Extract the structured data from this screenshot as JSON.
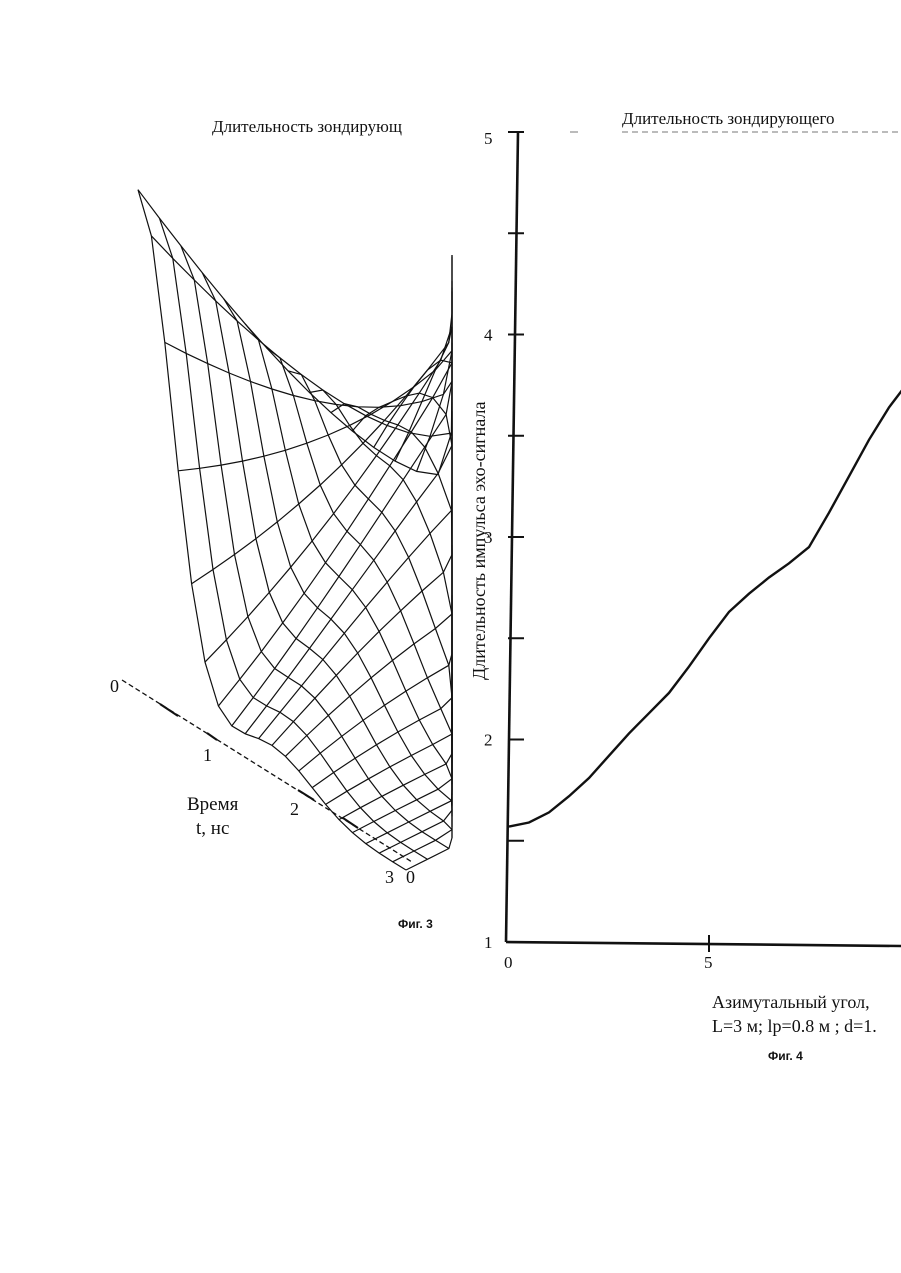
{
  "figure3": {
    "title": "Длительность зондирующ",
    "axis_t_label_line1": "Время",
    "axis_t_label_line2": "t, нс",
    "t_ticks": [
      "0",
      "1",
      "2",
      "3"
    ],
    "other_axis_tick": "0",
    "caption": "Фиг. 3"
  },
  "figure4": {
    "title": "Длительность  зондирующего",
    "y_label": "Длительность  импульса  эхо-сигнала",
    "x_label_line1": "Азимутальный угол,",
    "x_label_line2": "L=3 м;  lр=0.8 м ; d=1.",
    "caption": "Фиг. 4"
  },
  "chart_data": [
    {
      "type": "surface",
      "title": "Длительность зондирующ",
      "xlabel": "Время t, нс",
      "x_ticks": [
        0,
        1,
        2,
        3
      ],
      "y_ticks": [
        0
      ],
      "description_note": ""
    },
    {
      "type": "line",
      "title": "Длительность  зондирующего",
      "xlabel": "Азимутальный угол,",
      "ylabel": "Длительность  импульса  эхо-сигнала",
      "x_ticks": [
        0,
        5
      ],
      "y_ticks": [
        1,
        2,
        3,
        4,
        5
      ],
      "ylim": [
        1,
        5
      ],
      "xlim": [
        0,
        10
      ],
      "series": [
        {
          "x": [
            0,
            0.5,
            1,
            1.5,
            2,
            2.5,
            3,
            3.5,
            4,
            4.5,
            5,
            5.5,
            6,
            6.5,
            7,
            7.5,
            8,
            8.5,
            9,
            9.5,
            10
          ],
          "values": [
            1.57,
            1.59,
            1.64,
            1.72,
            1.81,
            1.92,
            2.03,
            2.13,
            2.23,
            2.36,
            2.5,
            2.63,
            2.72,
            2.8,
            2.87,
            2.95,
            3.12,
            3.3,
            3.48,
            3.64,
            3.77
          ]
        }
      ]
    }
  ]
}
